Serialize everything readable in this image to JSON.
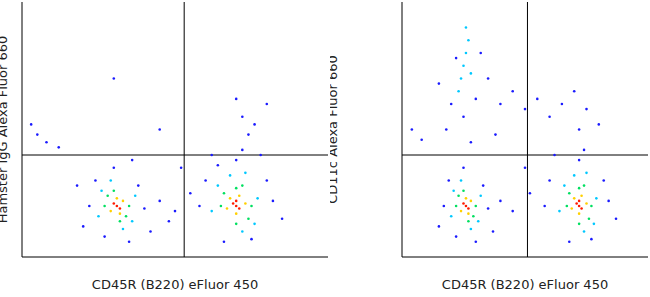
{
  "chart_data": [
    {
      "type": "scatter",
      "x_label": "CD45R (B220) eFluor 450",
      "y_label": "Hamster IgG Alexa Fluor 660",
      "xlim": [
        0,
        100
      ],
      "ylim": [
        0,
        100
      ],
      "tick_labels": false,
      "grid": false,
      "marker": "circle",
      "quadrant": {
        "x": 53,
        "y": 40
      },
      "series": [
        {
          "color": "#1a1aff",
          "x": [
            22,
            40,
            24,
            38,
            27,
            35,
            30,
            45,
            50,
            55,
            20,
            42,
            58,
            82,
            60,
            80,
            66,
            75,
            70,
            72,
            85,
            52,
            62,
            5,
            8,
            12,
            74,
            72,
            76,
            30,
            70,
            80,
            45,
            18,
            48,
            64,
            78,
            3,
            36
          ],
          "values": [
            20,
            19,
            30,
            28,
            8,
            6,
            35,
            22,
            18,
            25,
            12,
            10,
            20,
            22,
            30,
            30,
            6,
            7,
            38,
            42,
            15,
            35,
            40,
            48,
            45,
            43,
            48,
            55,
            52,
            70,
            62,
            60,
            50,
            28,
            14,
            36,
            40,
            52,
            38
          ]
        },
        {
          "color": "#00c8ff",
          "x": [
            25,
            37,
            29,
            33,
            26,
            36,
            62,
            77,
            68,
            72,
            64,
            76,
            73
          ],
          "values": [
            16,
            24,
            30,
            11,
            26,
            14,
            18,
            23,
            32,
            10,
            28,
            13,
            33
          ]
        },
        {
          "color": "#00e060",
          "x": [
            27,
            35,
            30,
            32,
            28,
            34,
            65,
            75,
            70,
            70,
            66,
            74,
            72
          ],
          "values": [
            20,
            20,
            26,
            14,
            24,
            16,
            20,
            20,
            27,
            13,
            25,
            15,
            28
          ]
        },
        {
          "color": "#ffd000",
          "x": [
            29,
            33,
            31,
            32,
            67,
            73,
            70,
            71,
            68
          ],
          "values": [
            18,
            22,
            23,
            17,
            19,
            21,
            17,
            24,
            23
          ]
        },
        {
          "color": "#ff1a00",
          "x": [
            31,
            32,
            30,
            70,
            71,
            69,
            70
          ],
          "values": [
            20,
            19,
            21,
            20,
            19,
            21,
            22
          ]
        }
      ]
    },
    {
      "type": "scatter",
      "x_label": "CD45R (B220) eFluor 450",
      "y_label": "CD11c Alexa Fluor 660",
      "xlim": [
        0,
        100
      ],
      "ylim": [
        0,
        100
      ],
      "tick_labels": false,
      "grid": false,
      "marker": "circle",
      "quadrant": {
        "x": 51,
        "y": 40
      },
      "series": [
        {
          "color": "#1a1aff",
          "x": [
            17,
            35,
            19,
            33,
            22,
            30,
            25,
            40,
            45,
            52,
            15,
            37,
            58,
            84,
            60,
            82,
            68,
            77,
            72,
            74,
            87,
            50,
            62,
            20,
            30,
            22,
            32,
            25,
            35,
            40,
            45,
            50,
            55,
            60,
            65,
            70,
            75,
            18,
            28,
            38,
            72,
            80,
            15,
            4,
            8
          ],
          "values": [
            20,
            19,
            30,
            28,
            8,
            6,
            35,
            22,
            18,
            25,
            12,
            10,
            20,
            22,
            30,
            30,
            6,
            7,
            38,
            42,
            15,
            35,
            40,
            60,
            62,
            78,
            80,
            55,
            70,
            60,
            65,
            58,
            62,
            55,
            60,
            65,
            58,
            50,
            45,
            48,
            50,
            52,
            68,
            50,
            46
          ]
        },
        {
          "color": "#00c8ff",
          "x": [
            20,
            32,
            24,
            28,
            21,
            31,
            64,
            79,
            70,
            74,
            66,
            78,
            75,
            25,
            26,
            24,
            27,
            23,
            28,
            26
          ],
          "values": [
            16,
            24,
            30,
            11,
            26,
            14,
            18,
            23,
            32,
            10,
            28,
            13,
            33,
            75,
            80,
            70,
            85,
            65,
            72,
            90
          ]
        },
        {
          "color": "#00e060",
          "x": [
            22,
            30,
            25,
            27,
            23,
            29,
            67,
            77,
            72,
            72,
            68,
            76,
            74
          ],
          "values": [
            20,
            20,
            26,
            14,
            24,
            16,
            20,
            20,
            27,
            13,
            25,
            15,
            28
          ]
        },
        {
          "color": "#ffd000",
          "x": [
            24,
            28,
            26,
            27,
            69,
            75,
            72,
            73,
            70
          ],
          "values": [
            18,
            22,
            23,
            17,
            19,
            21,
            17,
            24,
            23
          ]
        },
        {
          "color": "#ff1a00",
          "x": [
            26,
            27,
            25,
            72,
            73,
            71,
            72
          ],
          "values": [
            20,
            19,
            21,
            20,
            19,
            21,
            22
          ]
        }
      ]
    }
  ]
}
